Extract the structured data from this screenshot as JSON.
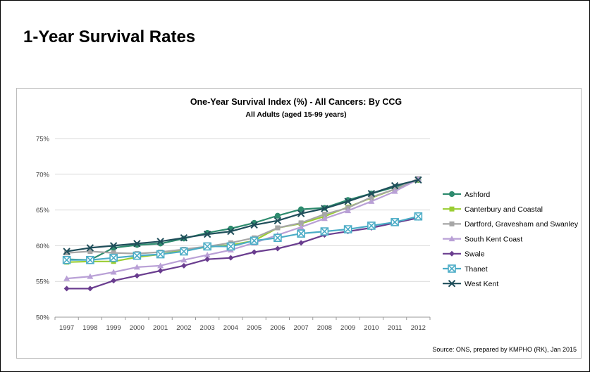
{
  "page": {
    "title": "1-Year Survival Rates"
  },
  "chart_data": {
    "type": "line",
    "title": "One-Year Survival Index (%) - All Cancers: By CCG",
    "subtitle": "All Adults (aged 15-99 years)",
    "xlabel": "",
    "ylabel": "",
    "x": [
      "1997",
      "1998",
      "1999",
      "2000",
      "2001",
      "2002",
      "2003",
      "2004",
      "2005",
      "2006",
      "2007",
      "2008",
      "2009",
      "2010",
      "2011",
      "2012"
    ],
    "ylim": [
      50,
      75
    ],
    "yticks": [
      50,
      55,
      60,
      65,
      70,
      75
    ],
    "ytick_labels": [
      "50%",
      "55%",
      "60%",
      "65%",
      "70%",
      "75%"
    ],
    "grid": "horizontal",
    "legend_position": "right",
    "series": [
      {
        "name": "Ashford",
        "color": "#2e8b6e",
        "marker": "circle",
        "values": [
          58.1,
          58.0,
          59.7,
          60.1,
          60.3,
          61.0,
          61.8,
          62.4,
          63.2,
          64.2,
          65.1,
          65.3,
          66.4,
          67.3,
          68.2,
          69.2
        ]
      },
      {
        "name": "Canterbury and Coastal",
        "color": "#9acd32",
        "marker": "square",
        "values": [
          57.7,
          57.8,
          57.8,
          58.4,
          58.8,
          59.4,
          59.8,
          60.1,
          60.7,
          62.5,
          63.1,
          64.1,
          65.4,
          66.7,
          67.9,
          69.2
        ]
      },
      {
        "name": "Dartford, Gravesham and Swanley",
        "color": "#a6a6a6",
        "marker": "square",
        "values": [
          59.0,
          59.2,
          59.0,
          58.9,
          59.1,
          59.5,
          59.9,
          60.4,
          61.1,
          62.5,
          63.2,
          64.4,
          65.3,
          66.8,
          67.9,
          69.4
        ]
      },
      {
        "name": "South Kent Coast",
        "color": "#b9a0d6",
        "marker": "triangle",
        "values": [
          55.4,
          55.7,
          56.3,
          57.0,
          57.2,
          58.0,
          58.7,
          59.4,
          60.4,
          61.5,
          62.6,
          63.8,
          64.9,
          66.2,
          67.6,
          69.3
        ]
      },
      {
        "name": "Swale",
        "color": "#6a3d8f",
        "marker": "diamond",
        "values": [
          54.0,
          54.0,
          55.1,
          55.8,
          56.5,
          57.2,
          58.1,
          58.3,
          59.1,
          59.6,
          60.4,
          61.5,
          62.0,
          62.5,
          63.2,
          63.9
        ]
      },
      {
        "name": "Thanet",
        "color": "#4bacc6",
        "marker": "boxx",
        "values": [
          58.0,
          58.0,
          58.3,
          58.6,
          58.8,
          59.2,
          59.9,
          59.9,
          60.7,
          61.1,
          61.7,
          62.0,
          62.3,
          62.8,
          63.3,
          64.1
        ]
      },
      {
        "name": "West Kent",
        "color": "#1f4e5a",
        "marker": "x",
        "values": [
          59.2,
          59.7,
          60.0,
          60.3,
          60.6,
          61.1,
          61.6,
          62.0,
          62.9,
          63.5,
          64.5,
          65.2,
          66.2,
          67.3,
          68.4,
          69.2
        ]
      }
    ],
    "source": "Source: ONS, prepared by KMPHO (RK), Jan 2015"
  }
}
